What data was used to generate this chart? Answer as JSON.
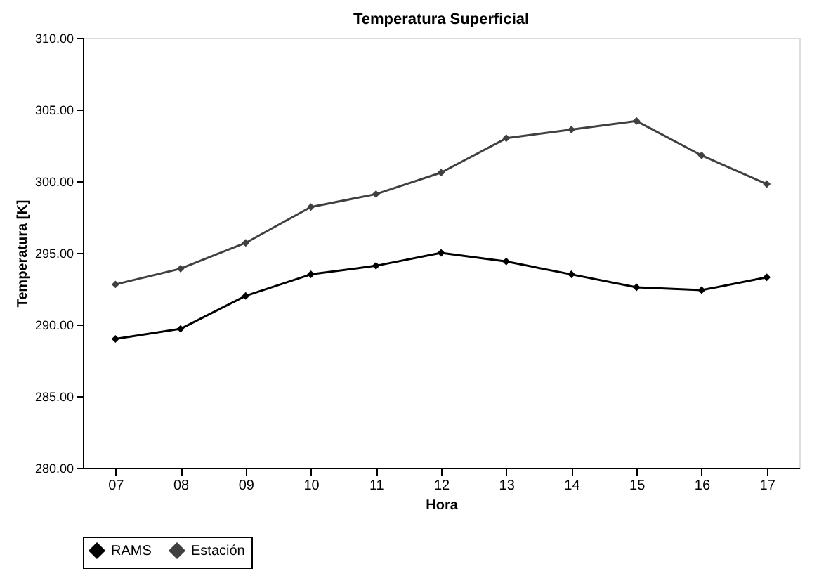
{
  "chart_data": {
    "type": "line",
    "title": "Temperatura Superficial",
    "xlabel": "Hora",
    "ylabel": "Temperatura [K]",
    "categories": [
      "07",
      "08",
      "09",
      "10",
      "11",
      "12",
      "13",
      "14",
      "15",
      "16",
      "17"
    ],
    "series": [
      {
        "name": "RAMS",
        "color": "#000000",
        "values": [
          289.0,
          289.7,
          292.0,
          293.5,
          294.1,
          295.0,
          294.4,
          293.5,
          292.6,
          292.4,
          293.3
        ]
      },
      {
        "name": "Estación",
        "color": "#404040",
        "values": [
          292.8,
          293.9,
          295.7,
          298.2,
          299.1,
          300.6,
          303.0,
          303.6,
          304.2,
          301.8,
          299.8
        ]
      }
    ],
    "ylim": [
      280,
      310
    ],
    "yticks": [
      {
        "value": 280,
        "label": "280.00"
      },
      {
        "value": 285,
        "label": "285.00"
      },
      {
        "value": 290,
        "label": "290.00"
      },
      {
        "value": 295,
        "label": "295.00"
      },
      {
        "value": 300,
        "label": "300.00"
      },
      {
        "value": 305,
        "label": "305.00"
      },
      {
        "value": 310,
        "label": "310.00"
      }
    ],
    "grid": false,
    "legend": "bottom",
    "marker": "diamond",
    "line_style": "solid"
  }
}
